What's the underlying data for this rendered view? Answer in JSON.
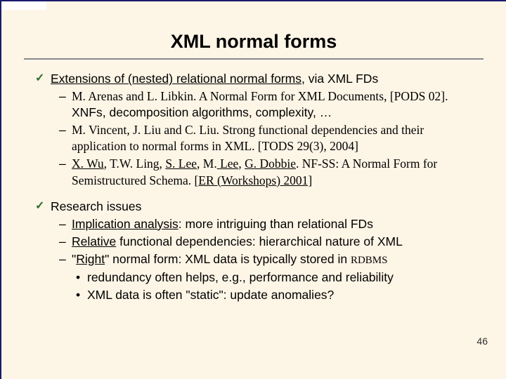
{
  "slide": {
    "title": "XML normal forms",
    "pageNumber": "46",
    "background_color": "#fdf5e6",
    "border_color": "#1a1a6e",
    "title_fontsize": 27,
    "body_fontsize": 17.5,
    "check_color": "#2a6e2a"
  },
  "b1": {
    "lead": "Extensions of (nested) relational normal forms",
    "tail": ", via XML FDs",
    "i1": {
      "authors": "M. Arenas and L. Libkin. ",
      "title": "A Normal Form for XML Documents,",
      "venue_open": "[",
      "venue_sc": "PODS 02",
      "venue_close": "]. ",
      "tail": "XNFs, decomposition algorithms, complexity, …"
    },
    "i2": {
      "authors": "M. Vincent, J. Liu and C. Liu. ",
      "title": "Strong functional dependencies and their application to normal forms in XML",
      "tail": ". [TODS 29(3), 2004]"
    },
    "i3": {
      "a1": "X. Wu",
      "s1": ", T.W. Ling, ",
      "a2": "S. Lee",
      "s2": ", M.",
      "a3": " Lee",
      "s3": ", ",
      "a4": "G. Dobbie",
      "s4": ". ",
      "title": "NF-SS: A Normal Form for Semistructured Schema. ",
      "venue": "[ER (Workshops) 2001]"
    }
  },
  "b2": {
    "lead": "Research issues",
    "i1": {
      "u": "Implication analysis",
      "tail": ": more intriguing than relational FDs"
    },
    "i2": {
      "u": "Relative",
      "tail": " functional dependencies: hierarchical nature of XML"
    },
    "i3": {
      "pre": "\"",
      "u": "Right",
      "post": "\" normal form: XML data is typically stored in ",
      "rdbms": "RDBMS",
      "d1": "redundancy often helps, e.g., performance and reliability",
      "d2": "XML data is often \"static\": update anomalies?"
    }
  }
}
